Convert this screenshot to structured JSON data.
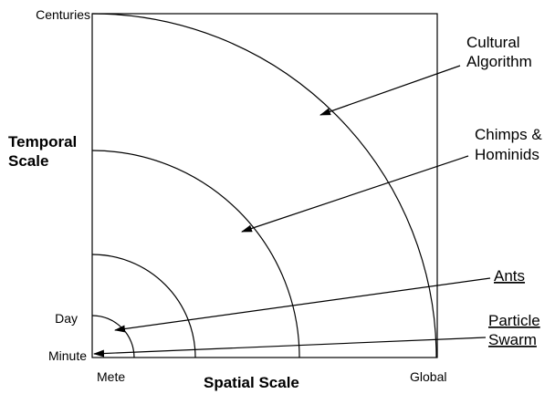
{
  "diagram": {
    "y_axis": {
      "title_line1": "Temporal",
      "title_line2": "Scale",
      "tick_top": "Centuries",
      "tick_mid": "Day",
      "tick_bottom": "Minute"
    },
    "x_axis": {
      "title": "Spatial Scale",
      "tick_left": "Mete",
      "tick_right": "Global"
    },
    "labels": {
      "cultural_line1": "Cultural",
      "cultural_line2": "Algorithm",
      "chimps_line1": "Chimps &",
      "chimps_line2": "Hominids",
      "ants": "Ants",
      "particle_line1": "Particle",
      "particle_line2": "Swarm"
    },
    "colors": {
      "stroke": "#000000",
      "background": "#ffffff"
    }
  }
}
